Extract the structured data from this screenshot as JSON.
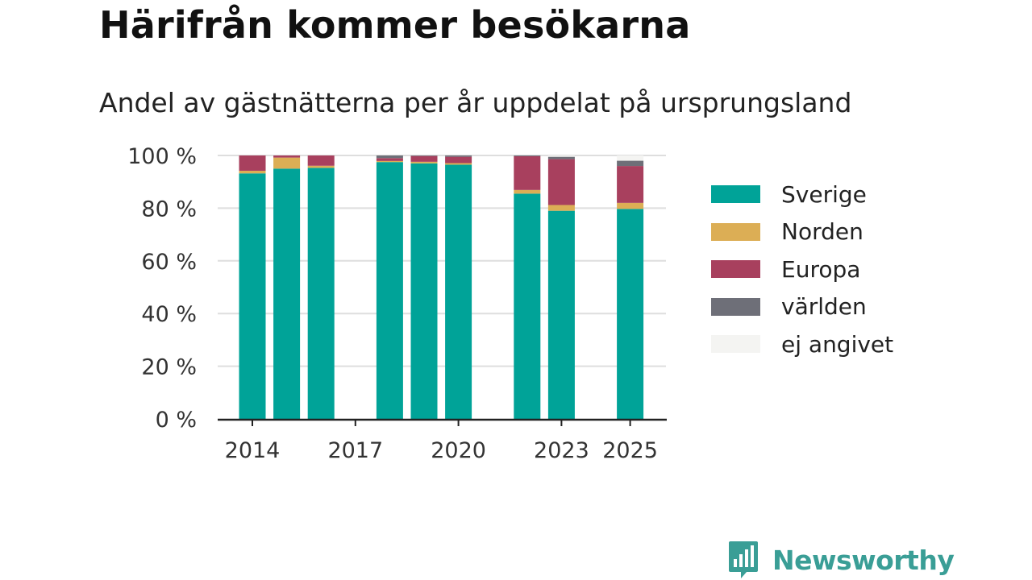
{
  "header": {
    "title": "Härifrån kommer besökarna",
    "subtitle": "Andel av gästnätterna per år uppdelat på ursprungsland"
  },
  "brand": {
    "name": "Newsworthy",
    "color": "#3a9e96"
  },
  "chart_data": {
    "type": "bar",
    "stacked": true,
    "categories": [
      "2014",
      "2015",
      "2016",
      "2017",
      "2018",
      "2019",
      "2020",
      "2021",
      "2022",
      "2023",
      "2024",
      "2025"
    ],
    "x_tick_labels": [
      "2014",
      "2017",
      "2020",
      "2023",
      "2025"
    ],
    "y_tick_labels": [
      "0 %",
      "20 %",
      "40 %",
      "60 %",
      "80 %",
      "100 %"
    ],
    "ylim": [
      0,
      100
    ],
    "grid": true,
    "legend_position": "right",
    "series": [
      {
        "name": "Sverige",
        "color": "#00a398",
        "values": [
          93.2,
          95.0,
          95.3,
          null,
          97.5,
          97.0,
          96.5,
          null,
          85.5,
          79.0,
          null,
          79.7
        ]
      },
      {
        "name": "Norden",
        "color": "#dcae55",
        "values": [
          1.0,
          4.2,
          0.8,
          null,
          0.4,
          0.6,
          0.6,
          null,
          1.4,
          2.2,
          null,
          2.3
        ]
      },
      {
        "name": "Europa",
        "color": "#a8405e",
        "values": [
          5.8,
          0.8,
          3.9,
          null,
          1.1,
          2.2,
          2.4,
          null,
          12.8,
          17.4,
          null,
          14.0
        ]
      },
      {
        "name": "världen",
        "color": "#6e6f78",
        "values": [
          0,
          0,
          0,
          null,
          1.0,
          0.2,
          0.5,
          null,
          0.3,
          0.9,
          null,
          2.0
        ]
      },
      {
        "name": "ej angivet",
        "color": "#f4f4f2",
        "values": [
          0,
          0,
          0,
          null,
          0,
          0,
          0,
          null,
          0,
          0.5,
          null,
          2.0
        ]
      }
    ]
  }
}
